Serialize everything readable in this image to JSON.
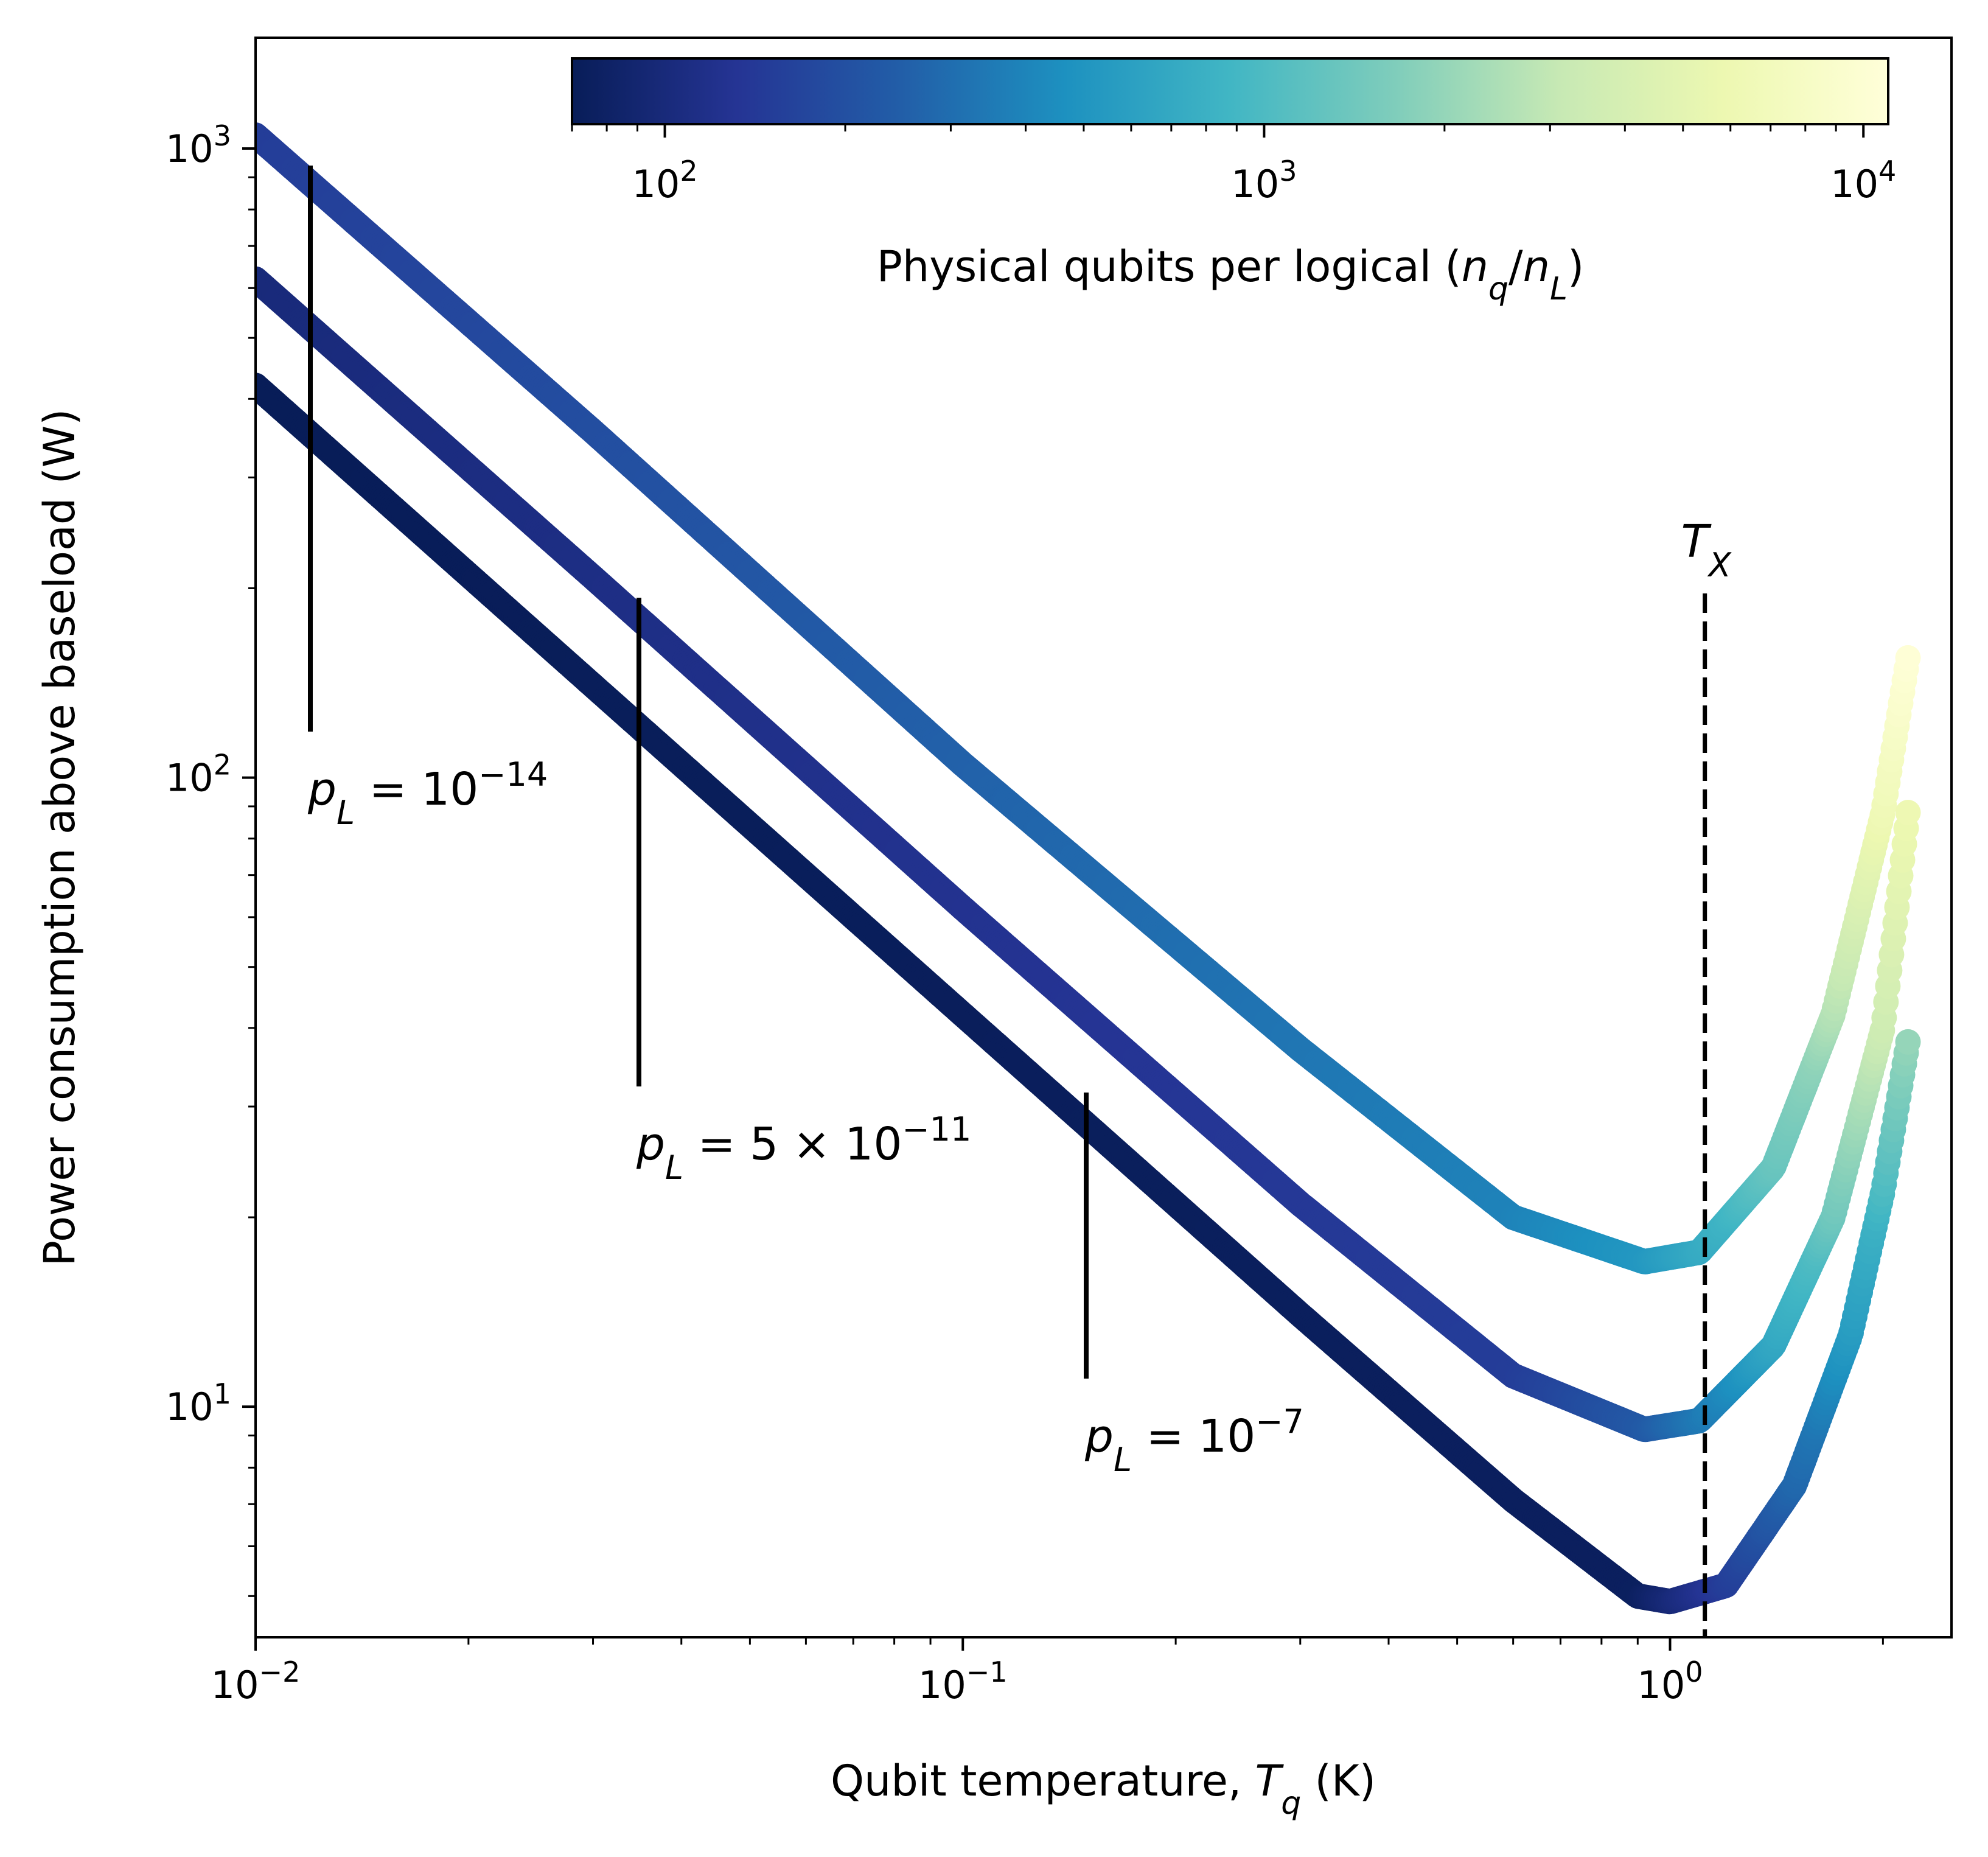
{
  "chart_data": {
    "type": "scatter",
    "title": "",
    "xlabel": "Qubit temperature, ",
    "xlabel_symbol": "T",
    "xlabel_sub": "q",
    "xlabel_unit": " (K)",
    "ylabel": "Power consumption above baseload (W)",
    "xscale": "log",
    "yscale": "log",
    "xlim": [
      0.01,
      2.5
    ],
    "ylim": [
      4.3,
      1500
    ],
    "x_ticks": [
      {
        "value": 0.01,
        "base": "10",
        "exp": "−2"
      },
      {
        "value": 0.1,
        "base": "10",
        "exp": "−1"
      },
      {
        "value": 1,
        "base": "10",
        "exp": "0"
      }
    ],
    "y_ticks": [
      {
        "value": 10,
        "base": "10",
        "exp": "1"
      },
      {
        "value": 100,
        "base": "10",
        "exp": "2"
      },
      {
        "value": 1000,
        "base": "10",
        "exp": "3"
      }
    ],
    "grid": false,
    "colormap": "YlGnBu_r",
    "colormap_stops": [
      "#081d58",
      "#253494",
      "#225ea8",
      "#1d91c0",
      "#41b6c4",
      "#7fcdbb",
      "#c7e9b4",
      "#edf8b1",
      "#ffffd9"
    ],
    "colorbar": {
      "label": "Physical qubits per logical (",
      "label_symbol": "n",
      "label_sub_q": "q",
      "label_slash": "/",
      "label_sub_L": "L",
      "label_close": ")",
      "scale": "log",
      "range": [
        70,
        11000
      ],
      "ticks": [
        {
          "value": 100,
          "base": "10",
          "exp": "2"
        },
        {
          "value": 1000,
          "base": "10",
          "exp": "3"
        },
        {
          "value": 10000,
          "base": "10",
          "exp": "4"
        }
      ],
      "placement": "top inside"
    },
    "series": [
      {
        "label_prefix": "p",
        "label_sub": "L",
        "label_eq": " = 10",
        "label_exp": "−14",
        "points": [
          [
            0.01,
            1050
          ],
          [
            0.03,
            355
          ],
          [
            0.1,
            105
          ],
          [
            0.3,
            37
          ],
          [
            0.6,
            20
          ],
          [
            0.92,
            17
          ],
          [
            1.1,
            17.6
          ],
          [
            1.4,
            24
          ],
          [
            1.7,
            42
          ],
          [
            2.0,
            88
          ],
          [
            2.17,
            155
          ]
        ],
        "nq_points": [
          [
            0.01,
            150
          ],
          [
            0.6,
            390
          ],
          [
            0.92,
            520
          ],
          [
            1.2,
            830
          ],
          [
            1.6,
            1900
          ],
          [
            1.95,
            5500
          ],
          [
            2.17,
            10500
          ]
        ]
      },
      {
        "label_prefix": "p",
        "label_sub": "L",
        "label_eq": " = 5 × 10",
        "label_exp": "−11",
        "points": [
          [
            0.01,
            620
          ],
          [
            0.03,
            208
          ],
          [
            0.1,
            62
          ],
          [
            0.3,
            21
          ],
          [
            0.6,
            11.2
          ],
          [
            0.92,
            9.2
          ],
          [
            1.1,
            9.5
          ],
          [
            1.4,
            12.5
          ],
          [
            1.7,
            20
          ],
          [
            2.0,
            40
          ],
          [
            2.17,
            88
          ]
        ],
        "nq_points": [
          [
            0.01,
            100
          ],
          [
            0.6,
            150
          ],
          [
            0.92,
            230
          ],
          [
            1.2,
            420
          ],
          [
            1.6,
            1000
          ],
          [
            1.95,
            3000
          ],
          [
            2.17,
            6000
          ]
        ]
      },
      {
        "label_prefix": "p",
        "label_sub": "L",
        "label_eq": " = 10",
        "label_exp": "−7",
        "points": [
          [
            0.01,
            420
          ],
          [
            0.03,
            140
          ],
          [
            0.1,
            42
          ],
          [
            0.3,
            14
          ],
          [
            0.6,
            7.1
          ],
          [
            0.9,
            5.0
          ],
          [
            1.0,
            4.9
          ],
          [
            1.2,
            5.2
          ],
          [
            1.5,
            7.5
          ],
          [
            1.8,
            13
          ],
          [
            2.0,
            22
          ],
          [
            2.17,
            38
          ]
        ],
        "nq_points": [
          [
            0.01,
            70
          ],
          [
            0.9,
            75
          ],
          [
            1.2,
            150
          ],
          [
            1.6,
            330
          ],
          [
            1.95,
            800
          ],
          [
            2.17,
            2000
          ]
        ]
      }
    ],
    "annotations": [
      {
        "kind": "vline",
        "symbol": "T",
        "sub": "X",
        "x": 1.12,
        "style": "dashed"
      }
    ]
  }
}
